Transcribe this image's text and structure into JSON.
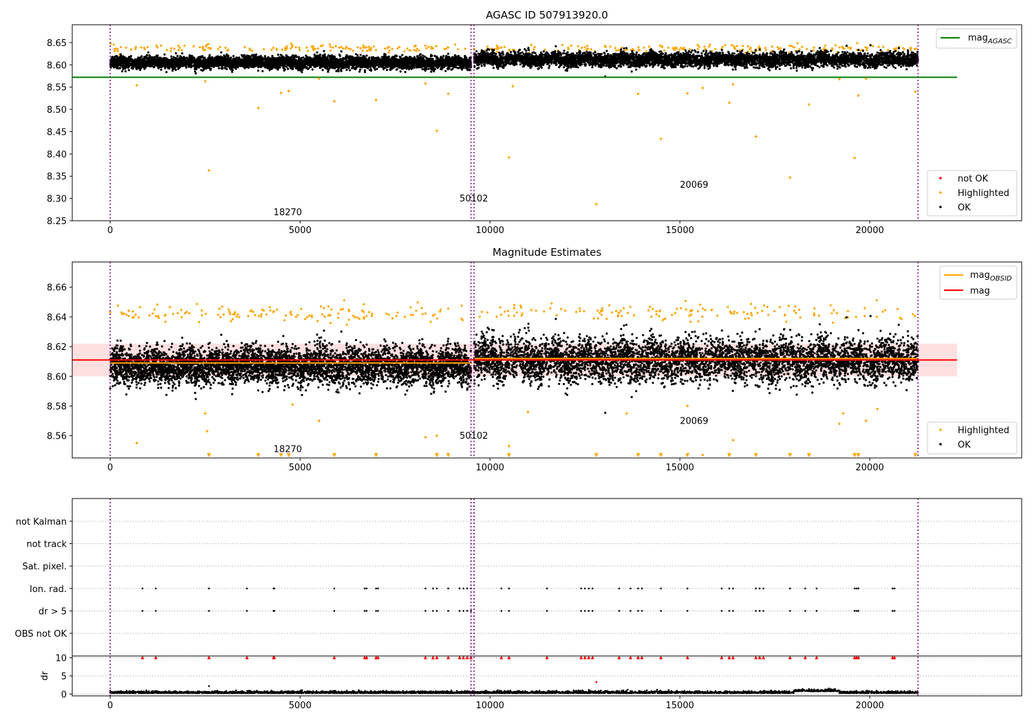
{
  "figure": {
    "background": "#ffffff"
  },
  "colors": {
    "ok": "#000000",
    "highlighted": "#ffa500",
    "not_ok": "#ff0000",
    "agasc_line": "#008000",
    "obsid_line": "#ffa500",
    "mag_line": "#ff0000",
    "mag_band": "#ffcccc",
    "obs_boundary": "#800080",
    "grid": "#b0b0b0"
  },
  "chart_data": [
    {
      "type": "scatter",
      "title": "AGASC ID 507913920.0",
      "xlim": [
        -1000,
        24000
      ],
      "ylim": [
        8.25,
        8.69
      ],
      "xticks": [
        0,
        5000,
        10000,
        15000,
        20000
      ],
      "xtick_labels": [
        "0",
        "5000",
        "10000",
        "15000",
        "20000"
      ],
      "yticks": [
        8.25,
        8.3,
        8.35,
        8.4,
        8.45,
        8.5,
        8.55,
        8.6,
        8.65
      ],
      "ytick_labels": [
        "8.25",
        "8.30",
        "8.35",
        "8.40",
        "8.45",
        "8.50",
        "8.55",
        "8.60",
        "8.65"
      ],
      "lines": [
        {
          "name": "mag",
          "subscript": "AGASC",
          "y": 8.572,
          "x_range": [
            -1000,
            22300
          ],
          "color": "#008000"
        }
      ],
      "obs_boundaries": [
        0,
        9500,
        9580,
        21270
      ],
      "annotations": [
        {
          "text": "18270",
          "x": 4300,
          "y": 8.262
        },
        {
          "text": "50102",
          "x": 9200,
          "y": 8.293
        },
        {
          "text": "20069",
          "x": 15000,
          "y": 8.324
        }
      ],
      "bands": [
        {
          "name": "OK",
          "x_range": [
            0,
            9500
          ],
          "center": 8.605,
          "spread": 0.012
        },
        {
          "name": "OK",
          "x_range": [
            9580,
            21270
          ],
          "center": 8.612,
          "spread": 0.014
        }
      ],
      "highlighted_cap": {
        "y": 8.637,
        "spread": 0.008,
        "count": 320
      },
      "outliers": [
        [
          700,
          8.554
        ],
        [
          2500,
          8.563
        ],
        [
          2600,
          8.363
        ],
        [
          3900,
          8.503
        ],
        [
          4500,
          8.537
        ],
        [
          4700,
          8.541
        ],
        [
          5500,
          8.569
        ],
        [
          5900,
          8.518
        ],
        [
          7000,
          8.521
        ],
        [
          8300,
          8.558
        ],
        [
          8600,
          8.452
        ],
        [
          8900,
          8.535
        ],
        [
          10500,
          8.392
        ],
        [
          10600,
          8.552
        ],
        [
          12800,
          8.287
        ],
        [
          13900,
          8.535
        ],
        [
          14500,
          8.434
        ],
        [
          15200,
          8.536
        ],
        [
          15600,
          8.548
        ],
        [
          16300,
          8.515
        ],
        [
          16400,
          8.556
        ],
        [
          17000,
          8.439
        ],
        [
          17900,
          8.347
        ],
        [
          18400,
          8.511
        ],
        [
          19200,
          8.568
        ],
        [
          19600,
          8.391
        ],
        [
          19700,
          8.531
        ],
        [
          19900,
          8.569
        ],
        [
          21200,
          8.54
        ]
      ],
      "legends": [
        {
          "position": "upper right",
          "entries": [
            {
              "label": "mag",
              "subscript": "AGASC",
              "kind": "line",
              "color": "#008000"
            }
          ]
        },
        {
          "position": "lower right",
          "entries": [
            {
              "label": "not OK",
              "kind": "marker",
              "color": "#ff0000"
            },
            {
              "label": "Highlighted",
              "kind": "marker",
              "color": "#ffa500"
            },
            {
              "label": "OK",
              "kind": "marker",
              "color": "#000000"
            }
          ]
        }
      ]
    },
    {
      "type": "scatter",
      "title": "Magnitude Estimates",
      "xlim": [
        -1000,
        24000
      ],
      "ylim": [
        8.545,
        8.677
      ],
      "xticks": [
        0,
        5000,
        10000,
        15000,
        20000
      ],
      "xtick_labels": [
        "0",
        "5000",
        "10000",
        "15000",
        "20000"
      ],
      "yticks": [
        8.56,
        8.58,
        8.6,
        8.62,
        8.64,
        8.66
      ],
      "ytick_labels": [
        "8.56",
        "8.58",
        "8.60",
        "8.62",
        "8.64",
        "8.66"
      ],
      "mag_band": {
        "y_range": [
          8.6,
          8.622
        ],
        "x_range": [
          -1000,
          22300
        ],
        "color": "#ffcccc"
      },
      "lines": [
        {
          "name": "mag",
          "y": 8.611,
          "x_range": [
            -1000,
            22300
          ],
          "color": "#ff0000"
        },
        {
          "name": "mag",
          "subscript": "OBSID",
          "y": 8.609,
          "x_range": [
            0,
            9500
          ],
          "color": "#ffa500"
        },
        {
          "name": "mag",
          "subscript": "OBSID",
          "y": 8.612,
          "x_range": [
            9580,
            21270
          ],
          "color": "#ffa500"
        }
      ],
      "obs_boundaries": [
        0,
        9500,
        9580,
        21270
      ],
      "annotations": [
        {
          "text": "18270",
          "x": 4300,
          "y": 8.549
        },
        {
          "text": "50102",
          "x": 9200,
          "y": 8.558
        },
        {
          "text": "20069",
          "x": 15000,
          "y": 8.568
        }
      ],
      "bands": [
        {
          "name": "OK",
          "x_range": [
            0,
            9500
          ],
          "center": 8.607,
          "spread": 0.011
        },
        {
          "name": "OK",
          "x_range": [
            9580,
            21270
          ],
          "center": 8.611,
          "spread": 0.013
        }
      ],
      "highlighted_cap": {
        "y": 8.643,
        "spread": 0.006,
        "count": 280
      },
      "below_range_x": [
        2600,
        3900,
        4500,
        4700,
        5900,
        7000,
        8600,
        8900,
        10500,
        12800,
        13900,
        14500,
        15200,
        16300,
        17000,
        17900,
        18400,
        19600,
        19700,
        21200
      ],
      "outliers": [
        [
          700,
          8.555
        ],
        [
          2500,
          8.575
        ],
        [
          2550,
          8.563
        ],
        [
          4800,
          8.581
        ],
        [
          5500,
          8.57
        ],
        [
          8300,
          8.559
        ],
        [
          8600,
          8.56
        ],
        [
          10500,
          8.553
        ],
        [
          11000,
          8.576
        ],
        [
          13600,
          8.575
        ],
        [
          15200,
          8.58
        ],
        [
          15600,
          8.547
        ],
        [
          16400,
          8.557
        ],
        [
          19200,
          8.568
        ],
        [
          19300,
          8.575
        ],
        [
          19900,
          8.57
        ],
        [
          20200,
          8.578
        ]
      ],
      "legends": [
        {
          "position": "upper right",
          "entries": [
            {
              "label": "mag",
              "subscript": "OBSID",
              "kind": "line",
              "color": "#ffa500"
            },
            {
              "label": "mag",
              "kind": "line",
              "color": "#ff0000"
            }
          ]
        },
        {
          "position": "lower right",
          "entries": [
            {
              "label": "Highlighted",
              "kind": "marker",
              "color": "#ffa500"
            },
            {
              "label": "OK",
              "kind": "marker",
              "color": "#000000"
            }
          ]
        }
      ]
    },
    {
      "type": "scatter",
      "title": "",
      "xlim": [
        -1000,
        24000
      ],
      "flag_rows": [
        "not Kalman",
        "not track",
        "Sat. pixel.",
        "Ion. rad.",
        "dr > 5",
        "OBS not OK"
      ],
      "flag_events": {
        "Ion. rad.": [
          850,
          1200,
          2600,
          3600,
          4300,
          4320,
          5900,
          6700,
          6750,
          7000,
          7050,
          8300,
          8500,
          8600,
          8900,
          9200,
          9300,
          9400,
          9500,
          10300,
          10500,
          11500,
          12400,
          12500,
          12600,
          12700,
          13400,
          13700,
          13900,
          14000,
          14500,
          15200,
          16100,
          16300,
          16400,
          17000,
          17100,
          17200,
          17900,
          18300,
          18600,
          19600,
          19650,
          19700,
          20600,
          20650
        ],
        "dr > 5": [
          850,
          1200,
          2600,
          3600,
          4300,
          4320,
          5900,
          6700,
          6750,
          7000,
          7050,
          8300,
          8500,
          8600,
          8900,
          9200,
          9300,
          9400,
          9500,
          10300,
          10500,
          11500,
          12400,
          12500,
          12600,
          12700,
          13400,
          13700,
          13900,
          14000,
          14500,
          15200,
          16100,
          16300,
          16400,
          17000,
          17100,
          17200,
          17900,
          18300,
          18600,
          19600,
          19650,
          19700,
          20600,
          20650
        ]
      },
      "obs_boundaries": [
        0,
        9500,
        9580,
        21270
      ]
    },
    {
      "type": "scatter",
      "title": "",
      "ylabel": "dr",
      "xlim": [
        -1000,
        24000
      ],
      "ylim": [
        -0.5,
        10.5
      ],
      "xticks": [
        0,
        5000,
        10000,
        15000,
        20000
      ],
      "xtick_labels": [
        "0",
        "5000",
        "10000",
        "15000",
        "20000"
      ],
      "yticks": [
        0,
        5,
        10
      ],
      "ytick_labels": [
        "0",
        "5",
        "10"
      ],
      "dr_baseline": {
        "x_range": [
          0,
          21270
        ],
        "center": 0.25,
        "spread": 0.25
      },
      "clipped_at_10_x": [
        850,
        1200,
        2600,
        3600,
        4300,
        4320,
        5900,
        6700,
        6750,
        7000,
        7050,
        8300,
        8500,
        8600,
        8900,
        9200,
        9300,
        9400,
        9500,
        10300,
        10500,
        11500,
        12400,
        12500,
        12600,
        12700,
        13400,
        13700,
        13900,
        14000,
        14500,
        15200,
        16100,
        16300,
        16400,
        17000,
        17100,
        17200,
        17900,
        18300,
        18600,
        19600,
        19650,
        19700,
        20600,
        20650
      ],
      "outliers": [
        [
          2600,
          2.2
        ],
        [
          12800,
          3.3
        ],
        [
          14400,
          1.2
        ]
      ],
      "obs_boundaries": [
        0,
        9500,
        9580,
        21270
      ]
    }
  ]
}
